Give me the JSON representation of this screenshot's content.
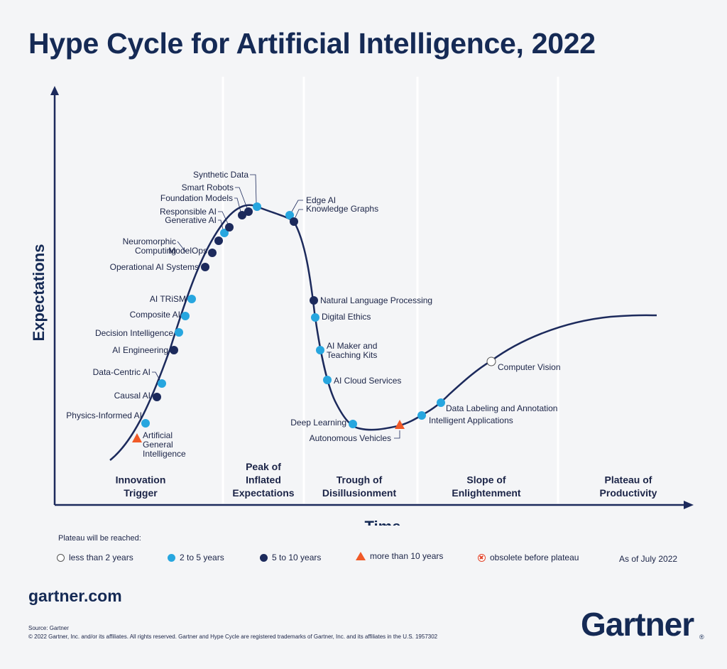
{
  "title": "Hype Cycle for Artificial Intelligence, 2022",
  "axes": {
    "y_label": "Expectations",
    "x_label": "Time"
  },
  "phases": [
    {
      "lines": [
        "Innovation",
        "Trigger"
      ]
    },
    {
      "lines": [
        "Peak of",
        "Inflated",
        "Expectations"
      ]
    },
    {
      "lines": [
        "Trough of",
        "Disillusionment"
      ]
    },
    {
      "lines": [
        "Slope of",
        "Enlightenment"
      ]
    },
    {
      "lines": [
        "Plateau of",
        "Productivity"
      ]
    }
  ],
  "technologies": [
    {
      "name": "Artificial General Intelligence",
      "lines": [
        "Artificial",
        "General",
        "Intelligence"
      ],
      "plateau": "more than 10 years"
    },
    {
      "name": "Physics-Informed AI",
      "lines": [
        "Physics-Informed AI"
      ],
      "plateau": "2 to 5 years"
    },
    {
      "name": "Causal AI",
      "lines": [
        "Causal AI"
      ],
      "plateau": "5 to 10 years"
    },
    {
      "name": "Data-Centric AI",
      "lines": [
        "Data-Centric AI"
      ],
      "plateau": "2 to 5 years"
    },
    {
      "name": "AI Engineering",
      "lines": [
        "AI Engineering"
      ],
      "plateau": "5 to 10 years"
    },
    {
      "name": "Decision Intelligence",
      "lines": [
        "Decision Intelligence"
      ],
      "plateau": "2 to 5 years"
    },
    {
      "name": "Composite AI",
      "lines": [
        "Composite AI"
      ],
      "plateau": "2 to 5 years"
    },
    {
      "name": "AI TRiSM",
      "lines": [
        "AI TRiSM"
      ],
      "plateau": "2 to 5 years"
    },
    {
      "name": "Operational AI Systems",
      "lines": [
        "Operational AI Systems"
      ],
      "plateau": "5 to 10 years"
    },
    {
      "name": "ModelOps",
      "lines": [
        "ModelOps"
      ],
      "plateau": "5 to 10 years"
    },
    {
      "name": "Neuromorphic Computing",
      "lines": [
        "Neuromorphic",
        "Computing"
      ],
      "plateau": "5 to 10 years"
    },
    {
      "name": "Generative AI",
      "lines": [
        "Generative AI"
      ],
      "plateau": "2 to 5 years"
    },
    {
      "name": "Responsible AI",
      "lines": [
        "Responsible AI"
      ],
      "plateau": "5 to 10 years"
    },
    {
      "name": "Foundation Models",
      "lines": [
        "Foundation Models"
      ],
      "plateau": "5 to 10 years"
    },
    {
      "name": "Smart Robots",
      "lines": [
        "Smart Robots"
      ],
      "plateau": "5 to 10 years"
    },
    {
      "name": "Synthetic Data",
      "lines": [
        "Synthetic Data"
      ],
      "plateau": "2 to 5 years"
    },
    {
      "name": "Edge AI",
      "lines": [
        "Edge AI"
      ],
      "plateau": "2 to 5 years"
    },
    {
      "name": "Knowledge Graphs",
      "lines": [
        "Knowledge Graphs"
      ],
      "plateau": "5 to 10 years"
    },
    {
      "name": "Natural Language Processing",
      "lines": [
        "Natural Language Processing"
      ],
      "plateau": "5 to 10 years"
    },
    {
      "name": "Digital Ethics",
      "lines": [
        "Digital Ethics"
      ],
      "plateau": "2 to 5 years"
    },
    {
      "name": "AI Maker and Teaching Kits",
      "lines": [
        "AI Maker and",
        "Teaching Kits"
      ],
      "plateau": "2 to 5 years"
    },
    {
      "name": "AI Cloud Services",
      "lines": [
        "AI Cloud Services"
      ],
      "plateau": "2 to 5 years"
    },
    {
      "name": "Deep Learning",
      "lines": [
        "Deep Learning"
      ],
      "plateau": "2 to 5 years"
    },
    {
      "name": "Autonomous Vehicles",
      "lines": [
        "Autonomous Vehicles"
      ],
      "plateau": "more than 10 years"
    },
    {
      "name": "Intelligent Applications",
      "lines": [
        "Intelligent Applications"
      ],
      "plateau": "2 to 5 years"
    },
    {
      "name": "Data Labeling and Annotation",
      "lines": [
        "Data Labeling and Annotation"
      ],
      "plateau": "2 to 5 years"
    },
    {
      "name": "Computer Vision",
      "lines": [
        "Computer Vision"
      ],
      "plateau": "less than 2 years"
    }
  ],
  "legend": {
    "title": "Plateau will be reached:",
    "items": [
      {
        "label": "less than 2 years",
        "color": "#ffffff",
        "shape": "circle"
      },
      {
        "label": "2 to 5 years",
        "color": "#27a6df",
        "shape": "circle"
      },
      {
        "label": "5 to 10 years",
        "color": "#1c2a5c",
        "shape": "circle"
      },
      {
        "label": "more than 10 years",
        "color": "#f05a28",
        "shape": "triangle"
      },
      {
        "label": "obsolete before plateau",
        "color": "#e2442a",
        "shape": "crossed-circle"
      }
    ],
    "as_of": "As of July 2022"
  },
  "footer": {
    "site": "gartner.com",
    "source": "Source: Gartner",
    "copyright": "© 2022 Gartner, Inc. and/or its affiliates. All rights reserved. Gartner and Hype Cycle are registered trademarks of Gartner, Inc. and its affiliates in the U.S. 1957302",
    "brand": "Gartner"
  },
  "colors": {
    "curve": "#1c2a5c",
    "title": "#152a55",
    "light": "#27a6df",
    "dark": "#1c2a5c",
    "triangle": "#f05a28",
    "background": "#f4f5f7"
  }
}
